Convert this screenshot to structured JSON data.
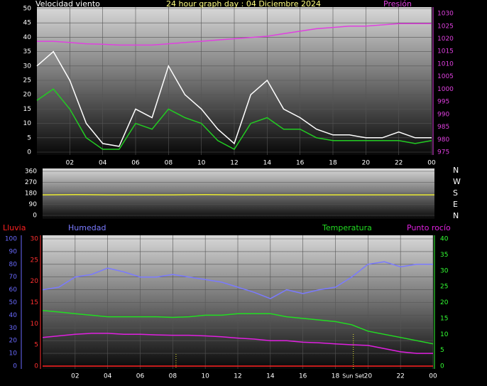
{
  "chart_data": [
    {
      "type": "line",
      "title": "24 hour graph day : 04 Diciembre 2024",
      "ylabel": "Velocidad viento",
      "y2label": "Presión",
      "x": [
        0,
        1,
        2,
        3,
        4,
        5,
        6,
        7,
        8,
        9,
        10,
        11,
        12,
        13,
        14,
        15,
        16,
        17,
        18,
        19,
        20,
        21,
        22,
        23,
        24
      ],
      "xlim": [
        0,
        24
      ],
      "xticks": [
        {
          "value": 2,
          "label": "02"
        },
        {
          "value": 4,
          "label": "04"
        },
        {
          "value": 6,
          "label": "06"
        },
        {
          "value": 8,
          "label": "08"
        },
        10,
        12,
        14,
        16,
        18,
        20,
        22,
        {
          "value": 24,
          "label": "00"
        }
      ],
      "ylim": [
        0,
        50
      ],
      "yticks": [
        0,
        5,
        10,
        15,
        20,
        25,
        30,
        35,
        40,
        45,
        50
      ],
      "y2lim": [
        975,
        1032
      ],
      "y2ticks": [
        975,
        980,
        985,
        990,
        995,
        1000,
        1005,
        1010,
        1015,
        1020,
        1025,
        1030
      ],
      "series": [
        {
          "color": "#ffffff",
          "values": [
            30,
            35,
            25,
            10,
            3,
            2,
            15,
            12,
            30,
            20,
            15,
            8,
            3,
            20,
            25,
            15,
            12,
            8,
            6,
            6,
            5,
            5,
            7,
            5,
            5
          ]
        },
        {
          "color": "#22cc22",
          "values": [
            18,
            22,
            15,
            5,
            1,
            1,
            10,
            8,
            15,
            12,
            10,
            4,
            1,
            10,
            12,
            8,
            8,
            5,
            4,
            4,
            4,
            4,
            4,
            3,
            4
          ]
        },
        {
          "color": "#e040e0",
          "axis": "y2",
          "values": [
            1019,
            1019,
            1018.5,
            1018,
            1017.8,
            1017.5,
            1017.5,
            1017.5,
            1018,
            1018.5,
            1019,
            1019.5,
            1020,
            1020.5,
            1021,
            1022,
            1023,
            1024,
            1024.5,
            1025,
            1025,
            1025.5,
            1026,
            1026,
            1026
          ]
        }
      ]
    },
    {
      "type": "line",
      "x": [
        0,
        2,
        4,
        6,
        8,
        10,
        12,
        14,
        16,
        18,
        20,
        22,
        24
      ],
      "xlim": [
        0,
        24
      ],
      "ylim": [
        0,
        360
      ],
      "yticks": [
        0,
        90,
        180,
        270,
        360
      ],
      "compass_labels": [
        "N",
        "W",
        "S",
        "E",
        "N"
      ],
      "series": [
        {
          "color": "#e8e830",
          "values": [
            168,
            170,
            168,
            168,
            168,
            170,
            168,
            168,
            168,
            168,
            168,
            168,
            168
          ]
        }
      ]
    },
    {
      "type": "line",
      "x": [
        0,
        1,
        2,
        3,
        4,
        5,
        6,
        7,
        8,
        9,
        10,
        11,
        12,
        13,
        14,
        15,
        16,
        17,
        18,
        19,
        20,
        21,
        22,
        23,
        24
      ],
      "xlim": [
        0,
        24
      ],
      "xticks": [
        {
          "value": 2,
          "label": "02"
        },
        {
          "value": 4,
          "label": "04"
        },
        {
          "value": 6,
          "label": "06"
        },
        {
          "value": 8,
          "label": "08"
        },
        10,
        12,
        14,
        16,
        18,
        20,
        22,
        {
          "value": 24,
          "label": "00"
        }
      ],
      "ylim": [
        0,
        100
      ],
      "yticks": [
        0,
        10,
        20,
        30,
        40,
        50,
        60,
        70,
        80,
        90,
        100
      ],
      "y3lim": [
        0,
        30
      ],
      "y3ticks": [
        0,
        5,
        10,
        15,
        20,
        25,
        30
      ],
      "y2lim": [
        0,
        40
      ],
      "y2ticks": [
        0,
        5,
        10,
        15,
        20,
        25,
        30,
        35,
        40
      ],
      "sunrise": 8.2,
      "sunset": 19.1,
      "sunset_label": "Sun Set",
      "series": [
        {
          "name": "Lluvia",
          "color": "#ff2020",
          "axis": "y3",
          "values": [
            0,
            0,
            0,
            0,
            0,
            0,
            0,
            0,
            0,
            0,
            0,
            0,
            0,
            0,
            0,
            0,
            0,
            0,
            0,
            0,
            0,
            0,
            0,
            0,
            0
          ]
        },
        {
          "name": "Humedad",
          "color": "#7a7aff",
          "values": [
            60,
            62,
            70,
            72,
            77,
            74,
            70,
            70,
            72,
            70,
            68,
            66,
            62,
            58,
            53,
            60,
            57,
            60,
            62,
            70,
            80,
            82,
            78,
            80,
            80
          ]
        },
        {
          "name": "Temperatura",
          "color": "#22dd22",
          "axis": "y2",
          "values": [
            17.5,
            17,
            16.5,
            16,
            15.5,
            15.5,
            15.5,
            15.5,
            15.3,
            15.5,
            16,
            16,
            16.5,
            16.5,
            16.5,
            15.5,
            15,
            14.5,
            14,
            13,
            11,
            10,
            9,
            8,
            7
          ]
        },
        {
          "name": "Punto rocío",
          "color": "#e020e0",
          "axis": "y2",
          "values": [
            9,
            9.5,
            10,
            10.3,
            10.3,
            10,
            10,
            9.8,
            9.7,
            9.7,
            9.5,
            9.2,
            8.8,
            8.5,
            8,
            8,
            7.5,
            7.3,
            7,
            6.7,
            6.5,
            5.5,
            4.5,
            4,
            4
          ]
        }
      ]
    }
  ]
}
